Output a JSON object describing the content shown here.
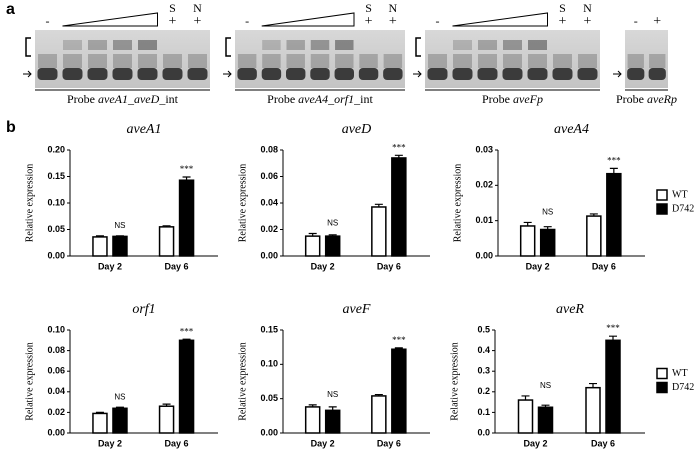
{
  "panel_labels": [
    "a",
    "b"
  ],
  "gels": [
    {
      "probe": "Probe",
      "gene": "aveA1_aveD",
      "suffix": "_int",
      "minus": "-",
      "competitors": [
        {
          "name": "S",
          "sign": "+"
        },
        {
          "name": "N",
          "sign": "+"
        }
      ]
    },
    {
      "probe": "Probe",
      "gene": "aveA4_orf1",
      "suffix": "_int",
      "minus": "-",
      "competitors": [
        {
          "name": "S",
          "sign": "+"
        },
        {
          "name": "N",
          "sign": "+"
        }
      ]
    },
    {
      "probe": "Probe",
      "gene": "aveFp",
      "minus": "-",
      "competitors": [
        {
          "name": "S",
          "sign": "+"
        },
        {
          "name": "N",
          "sign": "+"
        }
      ]
    },
    {
      "probe": "Probe",
      "gene": "aveRp",
      "minus": "-",
      "plus": "+"
    }
  ],
  "chart_data": [
    {
      "type": "bar",
      "title": "aveA1",
      "ylabel": "Relative expression",
      "categories": [
        "Day 2",
        "Day 6"
      ],
      "series": [
        {
          "name": "WT",
          "color": "#ffffff",
          "values": [
            0.036,
            0.055
          ],
          "errors": [
            0.002,
            0.002
          ]
        },
        {
          "name": "D742",
          "color": "#000000",
          "values": [
            0.037,
            0.143
          ],
          "errors": [
            0.001,
            0.006
          ]
        }
      ],
      "significance": [
        "NS",
        "***"
      ],
      "ylim": [
        0,
        0.2
      ],
      "yticks": [
        {
          "value": 0,
          "label": "0.00"
        },
        {
          "value": 0.05,
          "label": "0.05"
        },
        {
          "value": 0.1,
          "label": "0.10"
        },
        {
          "value": 0.15,
          "label": "0.15"
        },
        {
          "value": 0.2,
          "label": "0.20"
        }
      ],
      "legend": "none"
    },
    {
      "type": "bar",
      "title": "aveD",
      "ylabel": "Relative expression",
      "categories": [
        "Day 2",
        "Day 6"
      ],
      "series": [
        {
          "name": "WT",
          "color": "#ffffff",
          "values": [
            0.015,
            0.037
          ],
          "errors": [
            0.002,
            0.002
          ]
        },
        {
          "name": "D742",
          "color": "#000000",
          "values": [
            0.015,
            0.074
          ],
          "errors": [
            0.001,
            0.002
          ]
        }
      ],
      "significance": [
        "NS",
        "***"
      ],
      "ylim": [
        0,
        0.08
      ],
      "yticks": [
        {
          "value": 0,
          "label": "0.00"
        },
        0.02,
        0.04,
        0.06,
        0.08
      ],
      "legend": "none"
    },
    {
      "type": "bar",
      "title": "aveA4",
      "ylabel": "Relative expression",
      "categories": [
        "Day 2",
        "Day 6"
      ],
      "series": [
        {
          "name": "WT",
          "color": "#ffffff",
          "values": [
            0.0085,
            0.0113
          ],
          "errors": [
            0.001,
            0.0006
          ]
        },
        {
          "name": "D742",
          "color": "#000000",
          "values": [
            0.0075,
            0.0233
          ],
          "errors": [
            0.0008,
            0.0015
          ]
        }
      ],
      "significance": [
        "NS",
        "***"
      ],
      "ylim": [
        0,
        0.03
      ],
      "yticks": [
        {
          "value": 0,
          "label": "0.00"
        },
        0.01,
        0.02,
        0.03
      ],
      "legend": "right"
    },
    {
      "type": "bar",
      "title": "orf1",
      "ylabel": "Relative expression",
      "categories": [
        "Day 2",
        "Day 6"
      ],
      "series": [
        {
          "name": "WT",
          "color": "#ffffff",
          "values": [
            0.019,
            0.026
          ],
          "errors": [
            0.001,
            0.002
          ]
        },
        {
          "name": "D742",
          "color": "#000000",
          "values": [
            0.024,
            0.09
          ],
          "errors": [
            0.001,
            0.001
          ]
        }
      ],
      "significance": [
        "NS",
        "***"
      ],
      "ylim": [
        0,
        0.1
      ],
      "yticks": [
        {
          "value": 0,
          "label": "0.00"
        },
        0.02,
        0.04,
        0.06,
        0.08,
        {
          "value": 0.1,
          "label": "0.10"
        }
      ],
      "legend": "none"
    },
    {
      "type": "bar",
      "title": "aveF",
      "ylabel": "Relative expression",
      "categories": [
        "Day 2",
        "Day 6"
      ],
      "series": [
        {
          "name": "WT",
          "color": "#ffffff",
          "values": [
            0.038,
            0.054
          ],
          "errors": [
            0.003,
            0.002
          ]
        },
        {
          "name": "D742",
          "color": "#000000",
          "values": [
            0.033,
            0.122
          ],
          "errors": [
            0.005,
            0.002
          ]
        }
      ],
      "significance": [
        "NS",
        "***"
      ],
      "ylim": [
        0,
        0.15
      ],
      "yticks": [
        {
          "value": 0,
          "label": "0.00"
        },
        0.05,
        {
          "value": 0.1,
          "label": "0.10"
        },
        0.15
      ],
      "legend": "none"
    },
    {
      "type": "bar",
      "title": "aveR",
      "ylabel": "Relative expression",
      "categories": [
        "Day 2",
        "Day 6"
      ],
      "series": [
        {
          "name": "WT",
          "color": "#ffffff",
          "values": [
            0.16,
            0.22
          ],
          "errors": [
            0.02,
            0.02
          ]
        },
        {
          "name": "D742",
          "color": "#000000",
          "values": [
            0.125,
            0.45
          ],
          "errors": [
            0.01,
            0.02
          ]
        }
      ],
      "significance": [
        "NS",
        "***"
      ],
      "ylim": [
        0,
        0.5
      ],
      "yticks": [
        {
          "value": 0,
          "label": "0.0"
        },
        0.1,
        0.2,
        0.3,
        0.4,
        0.5
      ],
      "legend": "right"
    }
  ]
}
